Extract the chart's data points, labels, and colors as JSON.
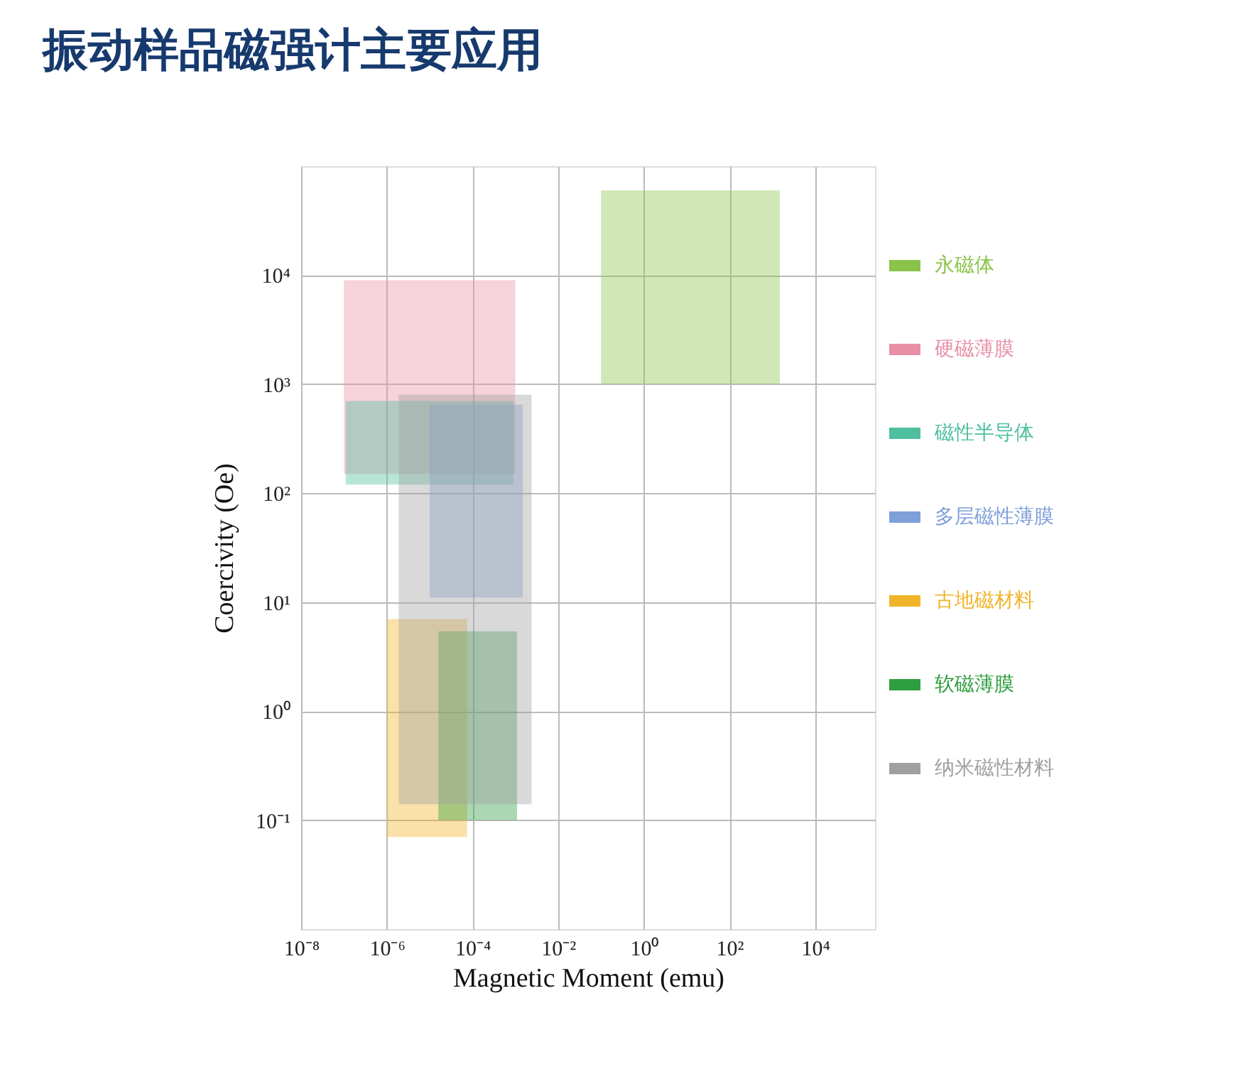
{
  "chart_data": {
    "type": "line",
    "title": "振动样品磁强计主要应用",
    "xlabel": "Magnetic Moment (emu)",
    "ylabel": "Coercivity (Oe)",
    "log": "xy",
    "grid": true,
    "legend": "right",
    "xlim": [
      1e-08,
      250000
    ],
    "ylim": [
      0.01,
      100000
    ],
    "xticks": [
      {
        "value": 1e-08,
        "label": "10⁻⁸"
      },
      {
        "value": 1e-06,
        "label": "10⁻⁶"
      },
      {
        "value": 0.0001,
        "label": "10⁻⁴"
      },
      {
        "value": 0.01,
        "label": "10⁻²"
      },
      {
        "value": 1,
        "label": "10⁰"
      },
      {
        "value": 100,
        "label": "10²"
      },
      {
        "value": 10000,
        "label": "10⁴"
      }
    ],
    "yticks": [
      {
        "value": 0.1,
        "label": "10⁻¹"
      },
      {
        "value": 1,
        "label": "10⁰"
      },
      {
        "value": 10,
        "label": "10¹"
      },
      {
        "value": 100,
        "label": "10²"
      },
      {
        "value": 1000,
        "label": "10³"
      },
      {
        "value": 10000,
        "label": "10⁴"
      }
    ],
    "series": [
      {
        "name": "永磁体",
        "color": "#8bc34a",
        "x": [
          0.1,
          1500
        ],
        "values": [
          null,
          null
        ],
        "upper": [
          60000,
          60000
        ],
        "lower": [
          1000,
          1000
        ]
      },
      {
        "name": "硬磁薄膜",
        "color": "#e88fa6",
        "x": [
          1e-07,
          0.001
        ],
        "values": [
          null,
          null
        ],
        "upper": [
          9000,
          9000
        ],
        "lower": [
          150,
          150
        ]
      },
      {
        "name": "磁性半导体",
        "color": "#4fbfa0",
        "x": [
          1.1e-07,
          0.0009
        ],
        "values": [
          null,
          null
        ],
        "upper": [
          700,
          700
        ],
        "lower": [
          120,
          120
        ]
      },
      {
        "name": "多层磁性薄膜",
        "color": "#7f9fd8",
        "x": [
          1e-05,
          0.0015
        ],
        "values": [
          null,
          null
        ],
        "upper": [
          650,
          650
        ],
        "lower": [
          11,
          11
        ]
      },
      {
        "name": "古地磁材料",
        "color": "#f0b429",
        "x": [
          1e-06,
          7.5e-05
        ],
        "values": [
          null,
          null
        ],
        "upper": [
          7,
          7
        ],
        "lower": [
          0.07,
          0.07
        ]
      },
      {
        "name": "软磁薄膜",
        "color": "#2e9e3e",
        "x": [
          1.6e-05,
          0.0011
        ],
        "values": [
          null,
          null
        ],
        "upper": [
          5.4,
          5.4
        ],
        "lower": [
          0.1,
          0.1
        ]
      },
      {
        "name": "纳米磁性材料",
        "color": "#a0a0a0",
        "x": [
          1.9e-06,
          0.0024
        ],
        "values": [
          null,
          null
        ],
        "upper": [
          800,
          800
        ],
        "lower": [
          0.14,
          0.14
        ]
      }
    ]
  }
}
